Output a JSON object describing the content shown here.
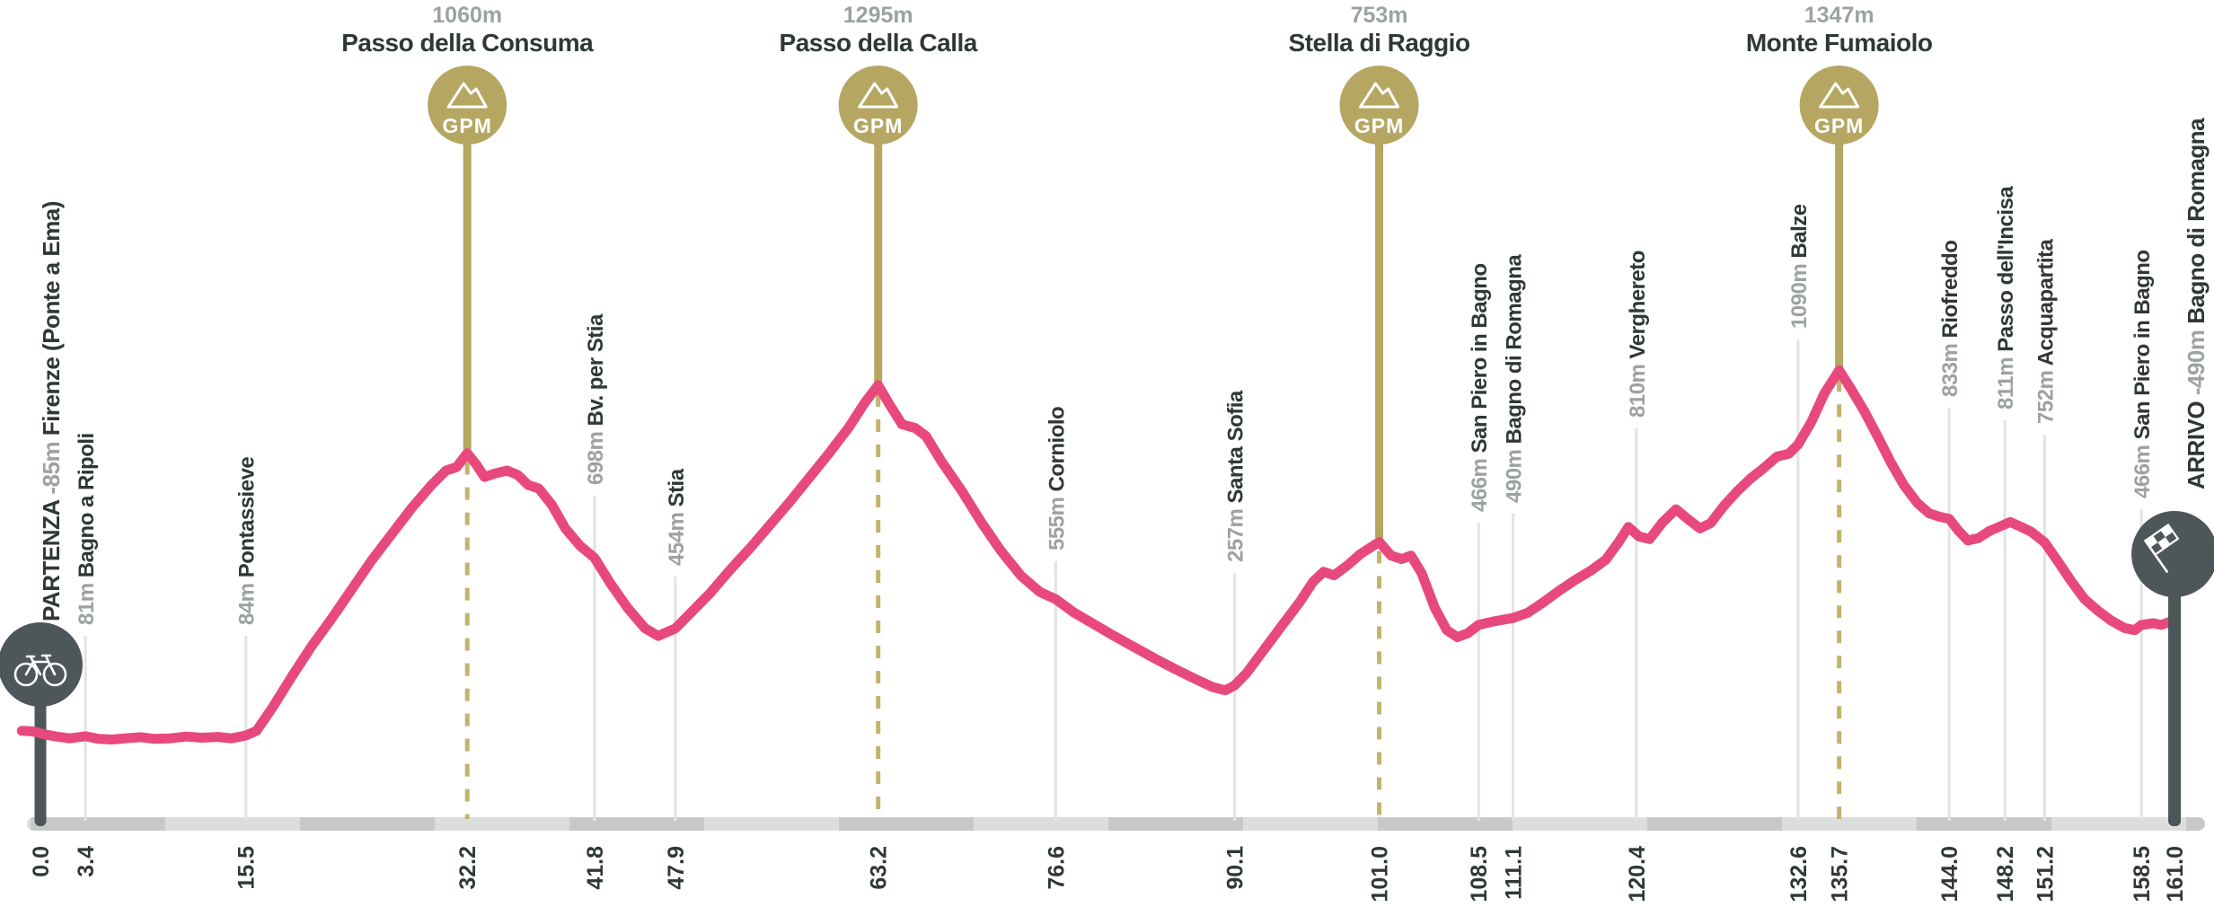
{
  "chart_data": {
    "type": "area",
    "title": "Stage elevation profile",
    "x_unit": "km",
    "y_unit": "m",
    "x_range": [
      0,
      161.0
    ],
    "y_range": [
      0,
      1400
    ],
    "grid": "vertical-waypoint-lines",
    "legend": "none",
    "profile_points_km_m": [
      [
        -1.4,
        100
      ],
      [
        -0.6,
        98
      ],
      [
        0.3,
        88
      ],
      [
        1.2,
        80
      ],
      [
        2.2,
        74
      ],
      [
        3.4,
        81
      ],
      [
        4.4,
        72
      ],
      [
        5.4,
        70
      ],
      [
        6.4,
        74
      ],
      [
        7.6,
        78
      ],
      [
        8.6,
        72
      ],
      [
        9.8,
        74
      ],
      [
        11,
        80
      ],
      [
        12.2,
        76
      ],
      [
        13.4,
        79
      ],
      [
        14.4,
        74
      ],
      [
        15.5,
        84
      ],
      [
        16.3,
        100
      ],
      [
        17.5,
        180
      ],
      [
        19,
        290
      ],
      [
        20.5,
        395
      ],
      [
        22,
        490
      ],
      [
        23.5,
        590
      ],
      [
        25,
        690
      ],
      [
        26.5,
        780
      ],
      [
        28,
        870
      ],
      [
        29.5,
        950
      ],
      [
        30.6,
        1000
      ],
      [
        31.4,
        1012
      ],
      [
        32.2,
        1060
      ],
      [
        32.9,
        1020
      ],
      [
        33.5,
        978
      ],
      [
        34.3,
        990
      ],
      [
        35.2,
        1000
      ],
      [
        36,
        985
      ],
      [
        36.8,
        950
      ],
      [
        37.6,
        938
      ],
      [
        38.6,
        880
      ],
      [
        39.6,
        800
      ],
      [
        40.7,
        740
      ],
      [
        41.8,
        698
      ],
      [
        43,
        610
      ],
      [
        44.3,
        525
      ],
      [
        45.6,
        455
      ],
      [
        46.6,
        428
      ],
      [
        47.9,
        454
      ],
      [
        49,
        505
      ],
      [
        50.5,
        575
      ],
      [
        52,
        655
      ],
      [
        53.5,
        730
      ],
      [
        55,
        810
      ],
      [
        56.5,
        890
      ],
      [
        58,
        975
      ],
      [
        59.5,
        1060
      ],
      [
        61,
        1150
      ],
      [
        62.2,
        1235
      ],
      [
        63.2,
        1295
      ],
      [
        64.1,
        1225
      ],
      [
        65,
        1160
      ],
      [
        66,
        1147
      ],
      [
        66.8,
        1120
      ],
      [
        68,
        1030
      ],
      [
        69.5,
        930
      ],
      [
        71,
        820
      ],
      [
        72.5,
        720
      ],
      [
        74,
        635
      ],
      [
        75.4,
        580
      ],
      [
        76.6,
        555
      ],
      [
        78,
        508
      ],
      [
        79.5,
        468
      ],
      [
        81,
        428
      ],
      [
        82.5,
        390
      ],
      [
        84,
        352
      ],
      [
        85.5,
        316
      ],
      [
        87,
        282
      ],
      [
        88.4,
        252
      ],
      [
        89.4,
        240
      ],
      [
        90.1,
        257
      ],
      [
        91,
        300
      ],
      [
        92.3,
        380
      ],
      [
        93.6,
        460
      ],
      [
        95,
        545
      ],
      [
        96,
        615
      ],
      [
        96.8,
        650
      ],
      [
        97.6,
        638
      ],
      [
        98.6,
        672
      ],
      [
        99.6,
        712
      ],
      [
        101,
        753
      ],
      [
        101.9,
        706
      ],
      [
        102.7,
        694
      ],
      [
        103.4,
        706
      ],
      [
        104.2,
        645
      ],
      [
        105.2,
        525
      ],
      [
        106.1,
        448
      ],
      [
        106.9,
        424
      ],
      [
        107.7,
        438
      ],
      [
        108.5,
        466
      ],
      [
        109.6,
        478
      ],
      [
        111.1,
        490
      ],
      [
        112.2,
        508
      ],
      [
        113.4,
        545
      ],
      [
        114.6,
        585
      ],
      [
        115.8,
        622
      ],
      [
        117,
        655
      ],
      [
        118.1,
        692
      ],
      [
        119.1,
        755
      ],
      [
        119.8,
        805
      ],
      [
        120.6,
        772
      ],
      [
        121.4,
        763
      ],
      [
        122.4,
        822
      ],
      [
        123.4,
        866
      ],
      [
        124.4,
        828
      ],
      [
        125.2,
        800
      ],
      [
        126,
        818
      ],
      [
        127,
        878
      ],
      [
        128,
        928
      ],
      [
        129,
        972
      ],
      [
        130,
        1008
      ],
      [
        131,
        1048
      ],
      [
        131.9,
        1058
      ],
      [
        132.6,
        1090
      ],
      [
        133.6,
        1168
      ],
      [
        134.6,
        1268
      ],
      [
        135.7,
        1347
      ],
      [
        136.6,
        1282
      ],
      [
        137.6,
        1205
      ],
      [
        138.6,
        1118
      ],
      [
        139.6,
        1028
      ],
      [
        140.6,
        948
      ],
      [
        141.6,
        888
      ],
      [
        142.5,
        852
      ],
      [
        143.3,
        840
      ],
      [
        144,
        833
      ],
      [
        144.7,
        792
      ],
      [
        145.4,
        758
      ],
      [
        146.2,
        766
      ],
      [
        147,
        790
      ],
      [
        147.8,
        806
      ],
      [
        148.6,
        822
      ],
      [
        149.4,
        806
      ],
      [
        150.2,
        788
      ],
      [
        151.2,
        752
      ],
      [
        152.2,
        686
      ],
      [
        153.2,
        618
      ],
      [
        154.2,
        556
      ],
      [
        155.2,
        516
      ],
      [
        156.2,
        482
      ],
      [
        157.2,
        456
      ],
      [
        158,
        448
      ],
      [
        158.5,
        466
      ],
      [
        159.4,
        472
      ],
      [
        160,
        466
      ],
      [
        160.7,
        478
      ]
    ],
    "start": {
      "km": 0.0,
      "prefix": "PARTENZA",
      "elev_label": "-85m",
      "name": "Firenze (Ponte a Ema)",
      "icon": "bicycle-icon"
    },
    "finish": {
      "km": 161.0,
      "prefix": "ARRIVO",
      "elev_label": "-490m",
      "name": "Bagno di Romagna",
      "icon": "checkered-flag-icon"
    },
    "gpm_badge_text": "GPM",
    "gpms": [
      {
        "km": 32.2,
        "elev": 1060,
        "elev_label": "1060m",
        "name": "Passo della Consuma"
      },
      {
        "km": 63.2,
        "elev": 1295,
        "elev_label": "1295m",
        "name": "Passo della Calla"
      },
      {
        "km": 101.0,
        "elev": 753,
        "elev_label": "753m",
        "name": "Stella di Raggio"
      },
      {
        "km": 135.7,
        "elev": 1347,
        "elev_label": "1347m",
        "name": "Monte Fumaiolo"
      }
    ],
    "waypoints": [
      {
        "km": 3.4,
        "elev": 81,
        "elev_label": "81m",
        "name": "Bagno a Ripoli",
        "line_top": 708
      },
      {
        "km": 15.5,
        "elev": 84,
        "elev_label": "84m",
        "name": "Pontassieve",
        "line_top": 708
      },
      {
        "km": 41.8,
        "elev": 698,
        "elev_label": "698m",
        "name": "Bv. per Stia",
        "line_top": 552
      },
      {
        "km": 47.9,
        "elev": 454,
        "elev_label": "454m",
        "name": "Stia",
        "line_top": 642
      },
      {
        "km": 76.6,
        "elev": 555,
        "elev_label": "555m",
        "name": "Corniolo",
        "line_top": 625
      },
      {
        "km": 90.1,
        "elev": 257,
        "elev_label": "257m",
        "name": "Santa Sofia",
        "line_top": 638
      },
      {
        "km": 108.5,
        "elev": 466,
        "elev_label": "466m",
        "name": "San Piero in Bagno",
        "line_top": 582
      },
      {
        "km": 111.1,
        "elev": 490,
        "elev_label": "490m",
        "name": "Bagno di Romagna",
        "line_top": 572
      },
      {
        "km": 120.4,
        "elev": 810,
        "elev_label": "810m",
        "name": "Verghereto",
        "line_top": 477
      },
      {
        "km": 132.6,
        "elev": 1090,
        "elev_label": "1090m",
        "name": "Balze",
        "line_top": 378
      },
      {
        "km": 144.0,
        "elev": 833,
        "elev_label": "833m",
        "name": "Riofreddo",
        "line_top": 454
      },
      {
        "km": 148.2,
        "elev": 811,
        "elev_label": "811m",
        "name": "Passo dell'Incisa",
        "line_top": 468
      },
      {
        "km": 151.2,
        "elev": 752,
        "elev_label": "752m",
        "name": "Acquapartita",
        "line_top": 484
      },
      {
        "km": 158.5,
        "elev": 466,
        "elev_label": "466m",
        "name": "San Piero in Bagno",
        "line_top": 567
      }
    ],
    "x_tick_labels": [
      "0.0",
      "3.4",
      "15.5",
      "32.2",
      "41.8",
      "47.9",
      "63.2",
      "76.6",
      "90.1",
      "101.0",
      "108.5",
      "111.1",
      "120.4",
      "132.6",
      "135.7",
      "144.0",
      "148.2",
      "151.2",
      "158.5",
      "161.0"
    ],
    "x_tick_values": [
      0.0,
      3.4,
      15.5,
      32.2,
      41.8,
      47.9,
      63.2,
      76.6,
      90.1,
      101.0,
      108.5,
      111.1,
      120.4,
      132.6,
      135.7,
      144.0,
      148.2,
      151.2,
      158.5,
      161.0
    ]
  },
  "colors": {
    "profile_pink": "#E8497C",
    "gpm_gold": "#B5A662",
    "gpm_gold_dash": "#C2B46E",
    "dark_slate": "#4D5659",
    "text_dark": "#2F3737",
    "text_gray": "#9CA1A1",
    "gridline": "#E2E3E3",
    "axis_band_dark": "#C7C8C8",
    "axis_band_light": "#DCDDDD",
    "icon_white": "#FFFFFF"
  }
}
